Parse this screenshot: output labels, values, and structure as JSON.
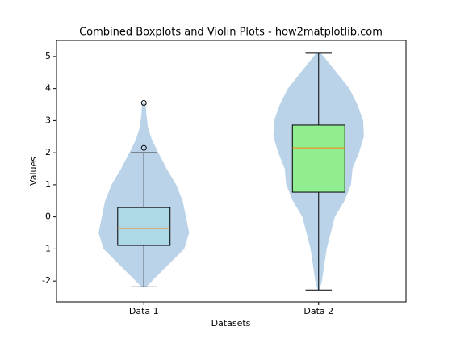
{
  "chart_data": {
    "type": "violin-box",
    "title": "Combined Boxplots and Violin Plots - how2matplotlib.com",
    "x_label": "Datasets",
    "y_label": "Values",
    "xlim": [
      0.5,
      2.5
    ],
    "ylim": [
      -2.65,
      5.5
    ],
    "yticks": [
      -2,
      -1,
      0,
      1,
      2,
      3,
      4,
      5
    ],
    "violin_color": "#bad3e8",
    "median_color": "#ff7f0e",
    "series": [
      {
        "name": "Data 1",
        "color": "#add8e6",
        "whislo": -2.18,
        "q1": -0.89,
        "median": -0.36,
        "q3": 0.29,
        "whishi": 2.0,
        "fliers": [
          2.15,
          3.55
        ],
        "violin_y": [
          3.57,
          3.2,
          2.8,
          2.4,
          2.0,
          1.5,
          1.0,
          0.5,
          0.0,
          -0.5,
          -1.0,
          -1.5,
          -1.9,
          -2.18
        ],
        "violin_half_width": [
          0.01,
          0.014,
          0.023,
          0.046,
          0.083,
          0.13,
          0.185,
          0.222,
          0.241,
          0.259,
          0.231,
          0.139,
          0.065,
          0.014
        ]
      },
      {
        "name": "Data 2",
        "color": "#90ee90",
        "whislo": -2.28,
        "q1": 0.77,
        "median": 2.15,
        "q3": 2.86,
        "whishi": 5.1,
        "fliers": [],
        "violin_y": [
          5.1,
          4.5,
          4.0,
          3.5,
          3.0,
          2.5,
          2.0,
          1.5,
          1.0,
          0.5,
          0.0,
          -1.0,
          -2.0,
          -2.28
        ],
        "violin_half_width": [
          0.014,
          0.102,
          0.176,
          0.222,
          0.255,
          0.259,
          0.231,
          0.194,
          0.185,
          0.148,
          0.093,
          0.046,
          0.019,
          0.005
        ]
      }
    ]
  }
}
